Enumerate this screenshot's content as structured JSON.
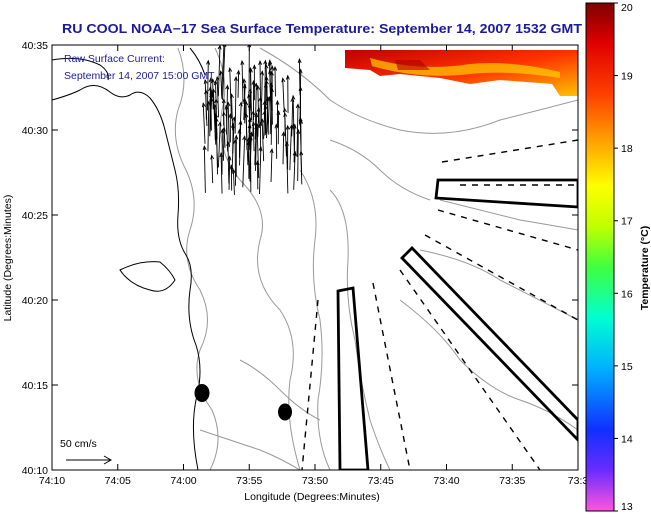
{
  "title": "RU COOL  NOAA−17  Sea Surface Temperature:  September 14, 2007 1532 GMT",
  "annotation": {
    "line1": "Raw Surface Current:",
    "line2": "September 14, 2007 15:00 GMT"
  },
  "scale_label": "50 cm/s",
  "x_axis": {
    "label": "Longitude (Degrees:Minutes)",
    "ticks": [
      "74:10",
      "74:05",
      "74:00",
      "73:55",
      "73:50",
      "73:45",
      "73:40",
      "73:35",
      "73:3"
    ]
  },
  "y_axis": {
    "label": "Latitude (Degrees:Minutes)",
    "ticks": [
      "40:35",
      "40:30",
      "40:25",
      "40:20",
      "40:15",
      "40:10"
    ]
  },
  "colorbar": {
    "label": "Temperature (°C)",
    "min": 13,
    "max": 20,
    "ticks": [
      "20",
      "19",
      "18",
      "17",
      "16",
      "15",
      "14",
      "13"
    ],
    "colors": [
      "#ff55dd",
      "#6a2cff",
      "#1030ff",
      "#00b0ff",
      "#00ffd0",
      "#40ff40",
      "#c0ff00",
      "#ffff00",
      "#ffaa00",
      "#ff4000",
      "#e00000",
      "#800000"
    ]
  },
  "colors": {
    "text_blue": "#1a1aa0",
    "land_line": "#000000",
    "bathymetry": "#999999",
    "sst_warm": "#e01000",
    "sst_hot": "#ffd000"
  }
}
